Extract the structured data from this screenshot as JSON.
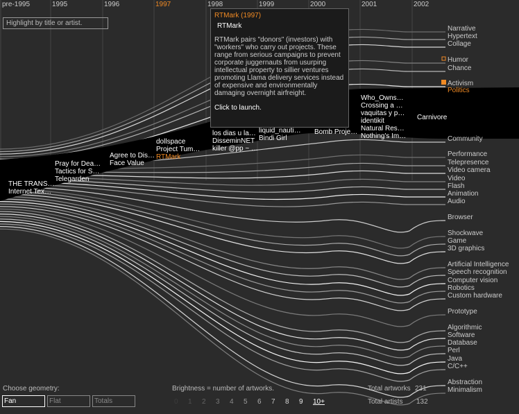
{
  "years": {
    "labels": [
      "pre-1995",
      "1995",
      "1996",
      "1997",
      "1998",
      "1999",
      "2000",
      "2001",
      "2002"
    ],
    "highlighted": 3
  },
  "search": {
    "placeholder": "Highlight by title or artist."
  },
  "tooltip": {
    "title": "RTMark (1997)",
    "name": "RTMark",
    "body": "RTMark pairs \"donors\" (investors) with \"workers\" who carry out projects. These range from serious campaigns to prevent corporate juggernauts from usurping intellectual property to sillier ventures promoting Llama delivery services instead of expensive and environmentally damaging overnight airfreight.",
    "action": "Click to launch."
  },
  "artworks": [
    [
      "THE TRANS…",
      "Internet Tex…"
    ],
    [
      "Pray for Dea…",
      "Tactics for S…",
      "Telegarden"
    ],
    [
      "Agree to Dis…",
      "Face Value"
    ],
    [
      "dollspace",
      "Project Tum…",
      "RTMark"
    ],
    [
      "los dias u la…",
      "DisseminNET",
      "killer @pp ~ …"
    ],
    [
      "liquid_nauti…",
      "Bindi Girl"
    ],
    [
      "Bomb Proje…"
    ],
    [
      "Who_Owns…",
      "Crossing a …",
      "vaquitas y p…",
      "identikit",
      "Natural Res…",
      "Nothing's Im…"
    ],
    [
      "Carnivore"
    ]
  ],
  "selected_artwork": "RTMark",
  "categories": [
    "Narrative",
    "Hypertext",
    "Collage",
    "Humor",
    "Chance",
    "Activism",
    "Politics",
    "Community",
    "Performance",
    "Telepresence",
    "Video camera",
    "Video",
    "Flash",
    "Animation",
    "Audio",
    "Browser",
    "Shockwave",
    "Game",
    "3D graphics",
    "Artificial Intelligence",
    "Speech recognition",
    "Computer vision",
    "Robotics",
    "Custom hardware",
    "Prototype",
    "Algorithmic",
    "Software",
    "Database",
    "Perl",
    "Java",
    "C/C++",
    "Abstraction",
    "Minimalism"
  ],
  "checkbox_empty": "Humor",
  "checkbox_filled": "Activism",
  "selected_category": "Politics",
  "geometry": {
    "label": "Choose geometry:",
    "options": [
      "Fan",
      "Flat",
      "Totals"
    ],
    "selected": 0
  },
  "brightness": {
    "label": "Brightness = number of artworks.",
    "scale": [
      "0",
      "1",
      "2",
      "3",
      "4",
      "5",
      "6",
      "7",
      "8",
      "9",
      "10+"
    ]
  },
  "totals": {
    "artworks_label": "Total artworks",
    "artworks": 231,
    "artists_label": "Total artists",
    "artists": 132
  }
}
